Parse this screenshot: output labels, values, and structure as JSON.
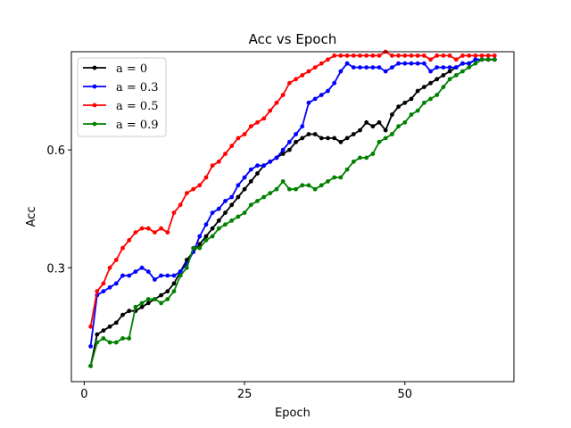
{
  "chart_data": {
    "type": "line",
    "title": "Acc vs Epoch",
    "xlabel": "Epoch",
    "ylabel": "Acc",
    "xlim": [
      -2,
      67
    ],
    "ylim": [
      0.01,
      0.85
    ],
    "xticks": [
      0,
      25,
      50
    ],
    "yticks": [
      0.3,
      0.6
    ],
    "ytick_labels": [
      "0.3",
      "0.6"
    ],
    "grid": false,
    "legend_position": "top-left",
    "x": [
      1,
      2,
      3,
      4,
      5,
      6,
      7,
      8,
      9,
      10,
      11,
      12,
      13,
      14,
      15,
      16,
      17,
      18,
      19,
      20,
      21,
      22,
      23,
      24,
      25,
      26,
      27,
      28,
      29,
      30,
      31,
      32,
      33,
      34,
      35,
      36,
      37,
      38,
      39,
      40,
      41,
      42,
      43,
      44,
      45,
      46,
      47,
      48,
      49,
      50,
      51,
      52,
      53,
      54,
      55,
      56,
      57,
      58,
      59,
      60,
      61,
      62,
      63,
      64
    ],
    "series": [
      {
        "name": "a = 0",
        "color": "#000000",
        "values": [
          0.05,
          0.13,
          0.14,
          0.15,
          0.16,
          0.18,
          0.19,
          0.19,
          0.2,
          0.21,
          0.22,
          0.23,
          0.24,
          0.26,
          0.29,
          0.32,
          0.34,
          0.36,
          0.38,
          0.4,
          0.42,
          0.44,
          0.46,
          0.48,
          0.5,
          0.52,
          0.54,
          0.56,
          0.57,
          0.58,
          0.59,
          0.6,
          0.62,
          0.63,
          0.64,
          0.64,
          0.63,
          0.63,
          0.63,
          0.62,
          0.63,
          0.64,
          0.65,
          0.67,
          0.66,
          0.67,
          0.65,
          0.69,
          0.71,
          0.72,
          0.73,
          0.75,
          0.76,
          0.77,
          0.78,
          0.79,
          0.8,
          0.81,
          0.82,
          0.82,
          0.83,
          0.83,
          0.83,
          0.83
        ]
      },
      {
        "name": "a = 0.3",
        "color": "#0000ff",
        "values": [
          0.1,
          0.23,
          0.24,
          0.25,
          0.26,
          0.28,
          0.28,
          0.29,
          0.3,
          0.29,
          0.27,
          0.28,
          0.28,
          0.28,
          0.29,
          0.31,
          0.34,
          0.38,
          0.41,
          0.44,
          0.45,
          0.47,
          0.48,
          0.51,
          0.53,
          0.55,
          0.56,
          0.56,
          0.57,
          0.58,
          0.6,
          0.62,
          0.64,
          0.66,
          0.72,
          0.73,
          0.74,
          0.75,
          0.77,
          0.8,
          0.82,
          0.81,
          0.81,
          0.81,
          0.81,
          0.81,
          0.8,
          0.81,
          0.82,
          0.82,
          0.82,
          0.82,
          0.82,
          0.8,
          0.81,
          0.81,
          0.81,
          0.81,
          0.82,
          0.82,
          0.83,
          0.83,
          0.83,
          0.83
        ]
      },
      {
        "name": "a = 0.5",
        "color": "#ff0000",
        "values": [
          0.15,
          0.24,
          0.26,
          0.3,
          0.32,
          0.35,
          0.37,
          0.39,
          0.4,
          0.4,
          0.39,
          0.4,
          0.39,
          0.44,
          0.46,
          0.49,
          0.5,
          0.51,
          0.53,
          0.56,
          0.57,
          0.59,
          0.61,
          0.63,
          0.64,
          0.66,
          0.67,
          0.68,
          0.7,
          0.72,
          0.74,
          0.77,
          0.78,
          0.79,
          0.8,
          0.81,
          0.82,
          0.83,
          0.84,
          0.84,
          0.84,
          0.84,
          0.84,
          0.84,
          0.84,
          0.84,
          0.85,
          0.84,
          0.84,
          0.84,
          0.84,
          0.84,
          0.84,
          0.83,
          0.84,
          0.84,
          0.84,
          0.83,
          0.84,
          0.84,
          0.84,
          0.84,
          0.84,
          0.84
        ]
      },
      {
        "name": "a = 0.9",
        "color": "#008000",
        "values": [
          0.05,
          0.11,
          0.12,
          0.11,
          0.11,
          0.12,
          0.12,
          0.2,
          0.21,
          0.22,
          0.22,
          0.21,
          0.22,
          0.24,
          0.28,
          0.3,
          0.35,
          0.35,
          0.37,
          0.38,
          0.4,
          0.41,
          0.42,
          0.43,
          0.44,
          0.46,
          0.47,
          0.48,
          0.49,
          0.5,
          0.52,
          0.5,
          0.5,
          0.51,
          0.51,
          0.5,
          0.51,
          0.52,
          0.53,
          0.53,
          0.55,
          0.57,
          0.58,
          0.58,
          0.59,
          0.62,
          0.63,
          0.64,
          0.66,
          0.67,
          0.69,
          0.7,
          0.72,
          0.73,
          0.74,
          0.76,
          0.78,
          0.79,
          0.8,
          0.81,
          0.82,
          0.83,
          0.83,
          0.83
        ]
      }
    ]
  }
}
